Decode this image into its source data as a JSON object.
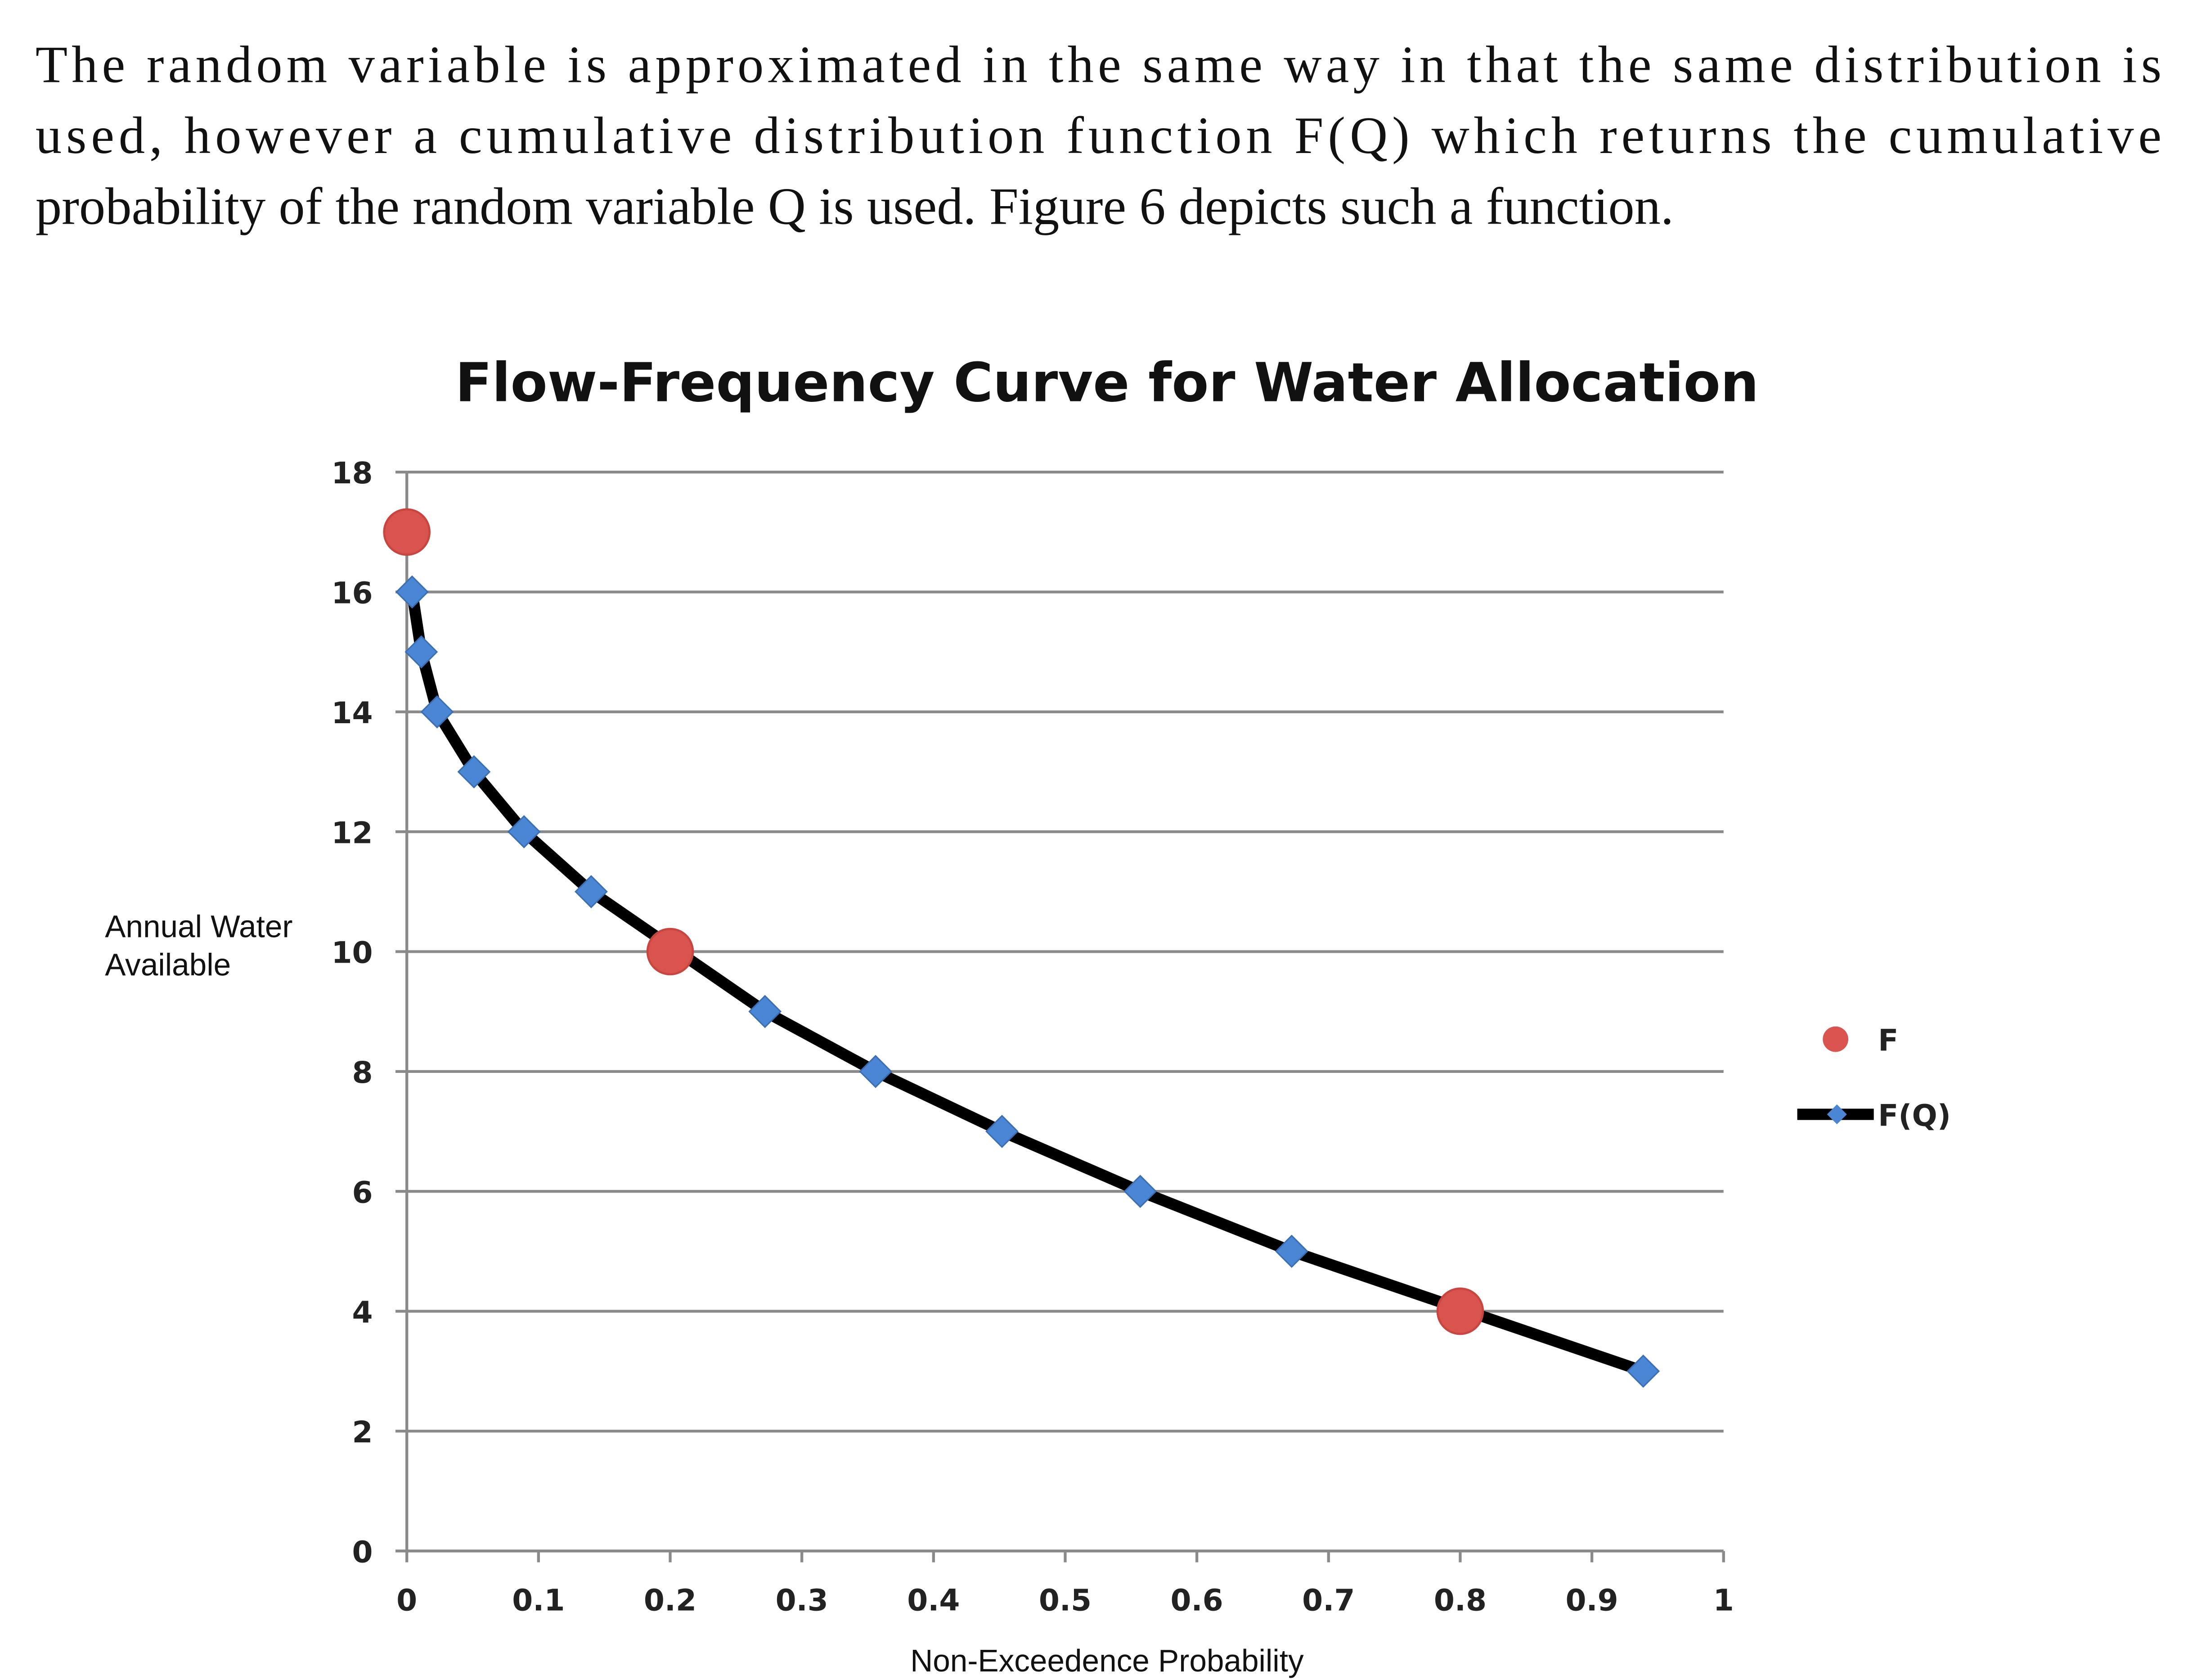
{
  "paragraph": [
    "The random variable is approximated in the same way in that the same distribution is",
    "used, however a cumulative distribution function F(Q) which returns the cumulative",
    "probability of the random variable Q is used. Figure 6 depicts such a function."
  ],
  "chart_data": {
    "type": "scatter",
    "title": "Flow-Frequency Curve for Water Allocation",
    "x_label": "Non-Exceedence Probability",
    "y_label": [
      "Annual Water",
      "Available"
    ],
    "xlim": [
      0,
      1
    ],
    "xticks": [
      0,
      0.1,
      0.2,
      0.3,
      0.4,
      0.5,
      0.6,
      0.7,
      0.8,
      0.9,
      1
    ],
    "ylim": [
      0,
      18
    ],
    "yticks": [
      0,
      2,
      4,
      6,
      8,
      10,
      12,
      14,
      16,
      18
    ],
    "grid": true,
    "legend": "right",
    "series": [
      {
        "name": "F",
        "type": "scatter",
        "color": "#d9534f",
        "x": [
          0,
          0.2,
          0.8
        ],
        "values": [
          17,
          10,
          4
        ]
      },
      {
        "name": "F(Q)",
        "type": "line",
        "color": "#000000",
        "marker_color": "#4a86d4",
        "x": [
          0.004,
          0.011,
          0.023,
          0.051,
          0.089,
          0.14,
          0.272,
          0.356,
          0.452,
          0.557,
          0.672,
          0.939
        ],
        "values": [
          16,
          15,
          14,
          13,
          12,
          11,
          9,
          8,
          7,
          6,
          5,
          3
        ]
      }
    ]
  }
}
